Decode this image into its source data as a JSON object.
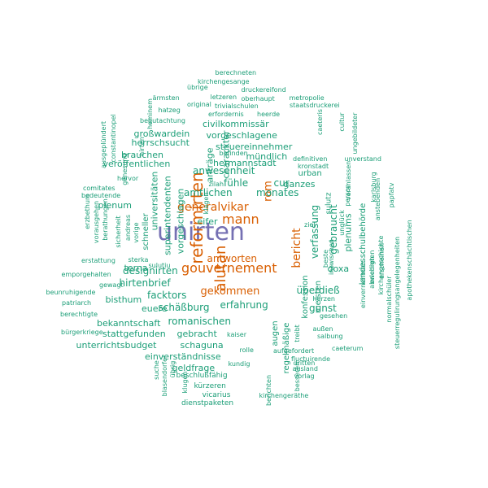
{
  "colors": {
    "teal": "#1b9e77",
    "orange": "#d95f02",
    "purple": "#7570b3"
  },
  "words": [
    {
      "text": "unirten",
      "color": "purple",
      "rot": 0
    },
    {
      "text": "reformirten",
      "color": "orange",
      "rot": -90
    },
    {
      "text": "alutan",
      "color": "orange",
      "rot": -90
    },
    {
      "text": "gouvernement",
      "color": "orange",
      "rot": 0
    },
    {
      "text": "generalvikar",
      "color": "orange",
      "rot": 0
    },
    {
      "text": "mann",
      "color": "orange",
      "rot": 0
    },
    {
      "text": "gekommen",
      "color": "orange",
      "rot": 0
    },
    {
      "text": "antworten",
      "color": "orange",
      "rot": 0
    },
    {
      "text": "bericht",
      "color": "orange",
      "rot": -90
    },
    {
      "text": "rom",
      "color": "orange",
      "rot": -90
    },
    {
      "text": "amtlichen",
      "color": "teal",
      "rot": 0
    },
    {
      "text": "anwesenheit",
      "color": "teal",
      "rot": 0
    },
    {
      "text": "fühle",
      "color": "teal",
      "rot": 0
    },
    {
      "text": "monates",
      "color": "teal",
      "rot": 0
    },
    {
      "text": "cur",
      "color": "teal",
      "rot": 0
    },
    {
      "text": "eifer",
      "color": "teal",
      "rot": 0
    },
    {
      "text": "designirten",
      "color": "teal",
      "rot": 0
    },
    {
      "text": "hirtenbrief",
      "color": "teal",
      "rot": 0
    },
    {
      "text": "facktors",
      "color": "teal",
      "rot": 0
    },
    {
      "text": "bisthum",
      "color": "teal",
      "rot": 0
    },
    {
      "text": "euere",
      "color": "teal",
      "rot": 0
    },
    {
      "text": "schäßburg",
      "color": "teal",
      "rot": 0
    },
    {
      "text": "erfahrung",
      "color": "teal",
      "rot": 0
    },
    {
      "text": "romanischen",
      "color": "teal",
      "rot": 0
    },
    {
      "text": "bekanntschaft",
      "color": "teal",
      "rot": 0
    },
    {
      "text": "stattgefunden",
      "color": "teal",
      "rot": 0
    },
    {
      "text": "gebracht",
      "color": "teal",
      "rot": 0
    },
    {
      "text": "unterrichtsbudget",
      "color": "teal",
      "rot": 0
    },
    {
      "text": "schaguna",
      "color": "teal",
      "rot": 0
    },
    {
      "text": "einverständnisse",
      "color": "teal",
      "rot": 0
    },
    {
      "text": "geldfrage",
      "color": "teal",
      "rot": 0
    },
    {
      "text": "beschlußfähig",
      "color": "teal",
      "rot": 0
    },
    {
      "text": "kürzeren",
      "color": "teal",
      "rot": 0
    },
    {
      "text": "vicarius",
      "color": "teal",
      "rot": 0
    },
    {
      "text": "dienstpaketen",
      "color": "teal",
      "rot": 0
    },
    {
      "text": "berechneten",
      "color": "teal",
      "rot": 0
    },
    {
      "text": "kirchengesange",
      "color": "teal",
      "rot": 0
    },
    {
      "text": "übrige",
      "color": "teal",
      "rot": 0
    },
    {
      "text": "druckereifond",
      "color": "teal",
      "rot": 0
    },
    {
      "text": "ärmsten",
      "color": "teal",
      "rot": 0
    },
    {
      "text": "letzeren",
      "color": "teal",
      "rot": 0
    },
    {
      "text": "oberhaupt",
      "color": "teal",
      "rot": 0
    },
    {
      "text": "metropolie",
      "color": "teal",
      "rot": 0
    },
    {
      "text": "original",
      "color": "teal",
      "rot": 0
    },
    {
      "text": "trivialschulen",
      "color": "teal",
      "rot": 0
    },
    {
      "text": "staatsdruckerei",
      "color": "teal",
      "rot": 0
    },
    {
      "text": "hatzeg",
      "color": "teal",
      "rot": 0
    },
    {
      "text": "erfordernis",
      "color": "teal",
      "rot": 0
    },
    {
      "text": "heerde",
      "color": "teal",
      "rot": 0
    },
    {
      "text": "begutachtung",
      "color": "teal",
      "rot": 0
    },
    {
      "text": "civilkommissär",
      "color": "teal",
      "rot": 0
    },
    {
      "text": "großwardein",
      "color": "teal",
      "rot": 0
    },
    {
      "text": "vorgeschlagene",
      "color": "teal",
      "rot": 0
    },
    {
      "text": "herrschsucht",
      "color": "teal",
      "rot": 0
    },
    {
      "text": "steuereinnehmer",
      "color": "teal",
      "rot": 0
    },
    {
      "text": "brauchen",
      "color": "teal",
      "rot": 0
    },
    {
      "text": "befinden",
      "color": "teal",
      "rot": 0
    },
    {
      "text": "mündlich",
      "color": "teal",
      "rot": 0
    },
    {
      "text": "veröffentlichen",
      "color": "teal",
      "rot": 0
    },
    {
      "text": "hermannstadt",
      "color": "teal",
      "rot": 0
    },
    {
      "text": "definitiven",
      "color": "teal",
      "rot": 0
    },
    {
      "text": "unverstand",
      "color": "teal",
      "rot": 0
    },
    {
      "text": "kronstadt",
      "color": "teal",
      "rot": 0
    },
    {
      "text": "urban",
      "color": "teal",
      "rot": 0
    },
    {
      "text": "hervor",
      "color": "teal",
      "rot": 0
    },
    {
      "text": "zilah",
      "color": "teal",
      "rot": 0
    },
    {
      "text": "ganzes",
      "color": "teal",
      "rot": 0
    },
    {
      "text": "comitates",
      "color": "teal",
      "rot": 0
    },
    {
      "text": "bedeutende",
      "color": "teal",
      "rot": 0
    },
    {
      "text": "plenum",
      "color": "teal",
      "rot": 0
    },
    {
      "text": "erstattung",
      "color": "teal",
      "rot": 0
    },
    {
      "text": "sterka",
      "color": "teal",
      "rot": 0
    },
    {
      "text": "terna",
      "color": "teal",
      "rot": 0
    },
    {
      "text": "sulutiu",
      "color": "teal",
      "rot": 0
    },
    {
      "text": "emporgehalten",
      "color": "teal",
      "rot": 0
    },
    {
      "text": "gewagt",
      "color": "teal",
      "rot": 0
    },
    {
      "text": "beunruhigende",
      "color": "teal",
      "rot": 0
    },
    {
      "text": "patriarch",
      "color": "teal",
      "rot": 0
    },
    {
      "text": "berechtigte",
      "color": "teal",
      "rot": 0
    },
    {
      "text": "bürgerkriege",
      "color": "teal",
      "rot": 0
    },
    {
      "text": "überdieß",
      "color": "teal",
      "rot": 0
    },
    {
      "text": "herzen",
      "color": "teal",
      "rot": 0
    },
    {
      "text": "gunst",
      "color": "teal",
      "rot": 0
    },
    {
      "text": "gesehen",
      "color": "teal",
      "rot": 0
    },
    {
      "text": "außen",
      "color": "teal",
      "rot": 0
    },
    {
      "text": "salbung",
      "color": "teal",
      "rot": 0
    },
    {
      "text": "kaiser",
      "color": "teal",
      "rot": 0
    },
    {
      "text": "aufgefordert",
      "color": "teal",
      "rot": 0
    },
    {
      "text": "caeterum",
      "color": "teal",
      "rot": 0
    },
    {
      "text": "fluctuirende",
      "color": "teal",
      "rot": 0
    },
    {
      "text": "dritten",
      "color": "teal",
      "rot": 0
    },
    {
      "text": "ausland",
      "color": "teal",
      "rot": 0
    },
    {
      "text": "vorlag",
      "color": "teal",
      "rot": 0
    },
    {
      "text": "kirchengeräthe",
      "color": "teal",
      "rot": 0
    },
    {
      "text": "rolle",
      "color": "teal",
      "rot": 0
    },
    {
      "text": "kundig",
      "color": "teal",
      "rot": 0
    },
    {
      "text": "doxa",
      "color": "teal",
      "rot": 0
    },
    {
      "text": "ziel",
      "color": "teal",
      "rot": 0
    },
    {
      "text": "universitäten",
      "color": "teal",
      "rot": -90
    },
    {
      "text": "superintendenten",
      "color": "teal",
      "rot": -90
    },
    {
      "text": "vorgeschlagen",
      "color": "teal",
      "rot": -90
    },
    {
      "text": "anträge",
      "color": "teal",
      "rot": -90
    },
    {
      "text": "charackter",
      "color": "teal",
      "rot": -90
    },
    {
      "text": "schneller",
      "color": "teal",
      "rot": -90
    },
    {
      "text": "klagen",
      "color": "teal",
      "rot": -90
    },
    {
      "text": "regelmäßige",
      "color": "teal",
      "rot": -90
    },
    {
      "text": "augen",
      "color": "teal",
      "rot": -90
    },
    {
      "text": "konfession",
      "color": "teal",
      "rot": -90
    },
    {
      "text": "meisten",
      "color": "teal",
      "rot": -90
    },
    {
      "text": "verfassung",
      "color": "teal",
      "rot": -90
    },
    {
      "text": "gebraucht",
      "color": "teal",
      "rot": -90
    },
    {
      "text": "sulutz",
      "color": "teal",
      "rot": -90
    },
    {
      "text": "plenums",
      "color": "teal",
      "rot": -90
    },
    {
      "text": "landesschulbehörde",
      "color": "teal",
      "rot": -90
    },
    {
      "text": "ausgeplündert",
      "color": "teal",
      "rot": -90
    },
    {
      "text": "constantinopel",
      "color": "teal",
      "rot": -90
    },
    {
      "text": "hominem",
      "color": "teal",
      "rot": -90
    },
    {
      "text": "genesung",
      "color": "teal",
      "rot": -90
    },
    {
      "text": "hirten",
      "color": "teal",
      "rot": -90
    },
    {
      "text": "erzbethum",
      "color": "teal",
      "rot": -90
    },
    {
      "text": "vorausgehen",
      "color": "teal",
      "rot": -90
    },
    {
      "text": "berathungen",
      "color": "teal",
      "rot": -90
    },
    {
      "text": "andreas",
      "color": "teal",
      "rot": -90
    },
    {
      "text": "vorige",
      "color": "teal",
      "rot": -90
    },
    {
      "text": "sicherheit",
      "color": "teal",
      "rot": -90
    },
    {
      "text": "suche",
      "color": "teal",
      "rot": -90
    },
    {
      "text": "blasendorfer",
      "color": "teal",
      "rot": -90
    },
    {
      "text": "übrig",
      "color": "teal",
      "rot": -90
    },
    {
      "text": "klugen",
      "color": "teal",
      "rot": -90
    },
    {
      "text": "berichten",
      "color": "teal",
      "rot": -90
    },
    {
      "text": "treibt",
      "color": "teal",
      "rot": -90
    },
    {
      "text": "besseren",
      "color": "teal",
      "rot": -90
    },
    {
      "text": "caeteris",
      "color": "teal",
      "rot": -90
    },
    {
      "text": "cultur",
      "color": "teal",
      "rot": -90
    },
    {
      "text": "ungebildeter",
      "color": "teal",
      "rot": -90
    },
    {
      "text": "veranlassen",
      "color": "teal",
      "rot": -90
    },
    {
      "text": "karlsburg",
      "color": "teal",
      "rot": -90
    },
    {
      "text": "person",
      "color": "teal",
      "rot": -90
    },
    {
      "text": "anstebenden",
      "color": "teal",
      "rot": -90
    },
    {
      "text": "papfatv",
      "color": "teal",
      "rot": -90
    },
    {
      "text": "klagen2",
      "color": "teal",
      "rot": -90
    },
    {
      "text": "unglück",
      "color": "teal",
      "rot": -90
    },
    {
      "text": "beste",
      "color": "teal",
      "rot": -90
    },
    {
      "text": "inzwischen",
      "color": "teal",
      "rot": -90
    },
    {
      "text": "einvernehmen",
      "color": "teal",
      "rot": -90
    },
    {
      "text": "abwehren",
      "color": "teal",
      "rot": -90
    },
    {
      "text": "kirchengeschichte",
      "color": "teal",
      "rot": -90
    },
    {
      "text": "normalschüler",
      "color": "teal",
      "rot": -90
    },
    {
      "text": "erscheinen",
      "color": "teal",
      "rot": -90
    },
    {
      "text": "erledigten",
      "color": "teal",
      "rot": -90
    },
    {
      "text": "steuerregulirungsangelegenheiten",
      "color": "teal",
      "rot": -90
    },
    {
      "text": "apothekenschächtischen",
      "color": "teal",
      "rot": -90
    }
  ]
}
